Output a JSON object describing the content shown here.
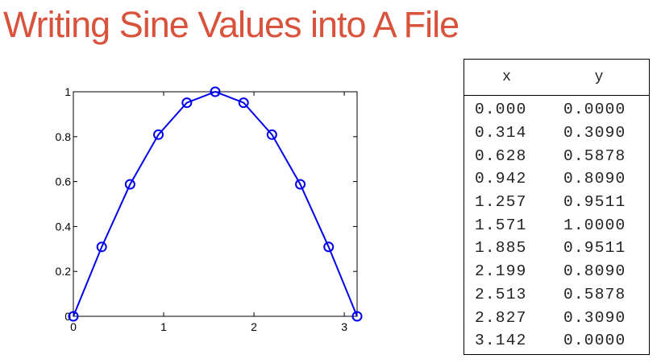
{
  "slide": {
    "title": "Writing Sine Values into A File"
  },
  "chart_data": {
    "type": "line",
    "x": [
      0.0,
      0.314,
      0.628,
      0.942,
      1.257,
      1.571,
      1.885,
      2.199,
      2.513,
      2.827,
      3.142
    ],
    "series": [
      {
        "values": [
          0.0,
          0.309,
          0.5878,
          0.809,
          0.9511,
          1.0,
          0.9511,
          0.809,
          0.5878,
          0.309,
          0.0
        ]
      }
    ],
    "marker": "circle",
    "xlim": [
      0,
      3.142
    ],
    "ylim": [
      0,
      1
    ],
    "xticks": [
      0,
      1,
      2,
      3
    ],
    "yticks": [
      0,
      0.2,
      0.4,
      0.6,
      0.8,
      1
    ],
    "xtick_labels": [
      "0",
      "1",
      "2",
      "3"
    ],
    "ytick_labels": [
      "0",
      "0.2",
      "0.4",
      "0.6",
      "0.8",
      "1"
    ],
    "title": "",
    "xlabel": "",
    "ylabel": "",
    "grid": false,
    "line_color": "#0000ee"
  },
  "table": {
    "headers": [
      "x",
      "y"
    ],
    "rows": [
      [
        "0.000",
        "0.0000"
      ],
      [
        "0.314",
        "0.3090"
      ],
      [
        "0.628",
        "0.5878"
      ],
      [
        "0.942",
        "0.8090"
      ],
      [
        "1.257",
        "0.9511"
      ],
      [
        "1.571",
        "1.0000"
      ],
      [
        "1.885",
        "0.9511"
      ],
      [
        "2.199",
        "0.8090"
      ],
      [
        "2.513",
        "0.5878"
      ],
      [
        "2.827",
        "0.3090"
      ],
      [
        "3.142",
        "0.0000"
      ]
    ]
  }
}
